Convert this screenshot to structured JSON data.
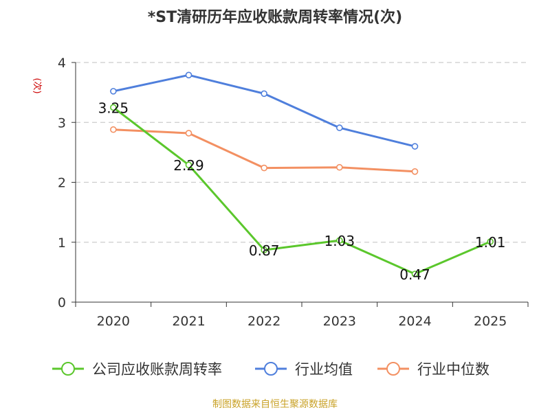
{
  "chart_data": {
    "type": "line",
    "title": "*ST清研历年应收账款周转率情况(次)",
    "ylabel": "(次)",
    "xlabel": "",
    "categories": [
      "2020",
      "2021",
      "2022",
      "2023",
      "2024",
      "2025"
    ],
    "ylim": [
      0,
      4
    ],
    "yticks": [
      0,
      1,
      2,
      3,
      4
    ],
    "grid": true,
    "legend_position": "bottom",
    "series": [
      {
        "name": "公司应收账款周转率",
        "color": "#5bc72c",
        "values": [
          3.25,
          2.29,
          0.87,
          1.03,
          0.47,
          1.01
        ],
        "labels": [
          "3.25",
          "2.29",
          "0.87",
          "1.03",
          "0.47",
          "1.01"
        ],
        "show_labels": true
      },
      {
        "name": "行业均值",
        "color": "#4f7fdc",
        "values": [
          3.52,
          3.79,
          3.48,
          2.91,
          2.6,
          null
        ],
        "show_labels": false
      },
      {
        "name": "行业中位数",
        "color": "#f39062",
        "values": [
          2.88,
          2.82,
          2.24,
          2.25,
          2.18,
          null
        ],
        "show_labels": false
      }
    ]
  },
  "source_note": "制图数据来自恒生聚源数据库",
  "colors": {
    "title": "#333333",
    "ylabel": "#cc0000",
    "axis": "#333333",
    "grid": "#cccccc",
    "source": "#c9a227"
  }
}
